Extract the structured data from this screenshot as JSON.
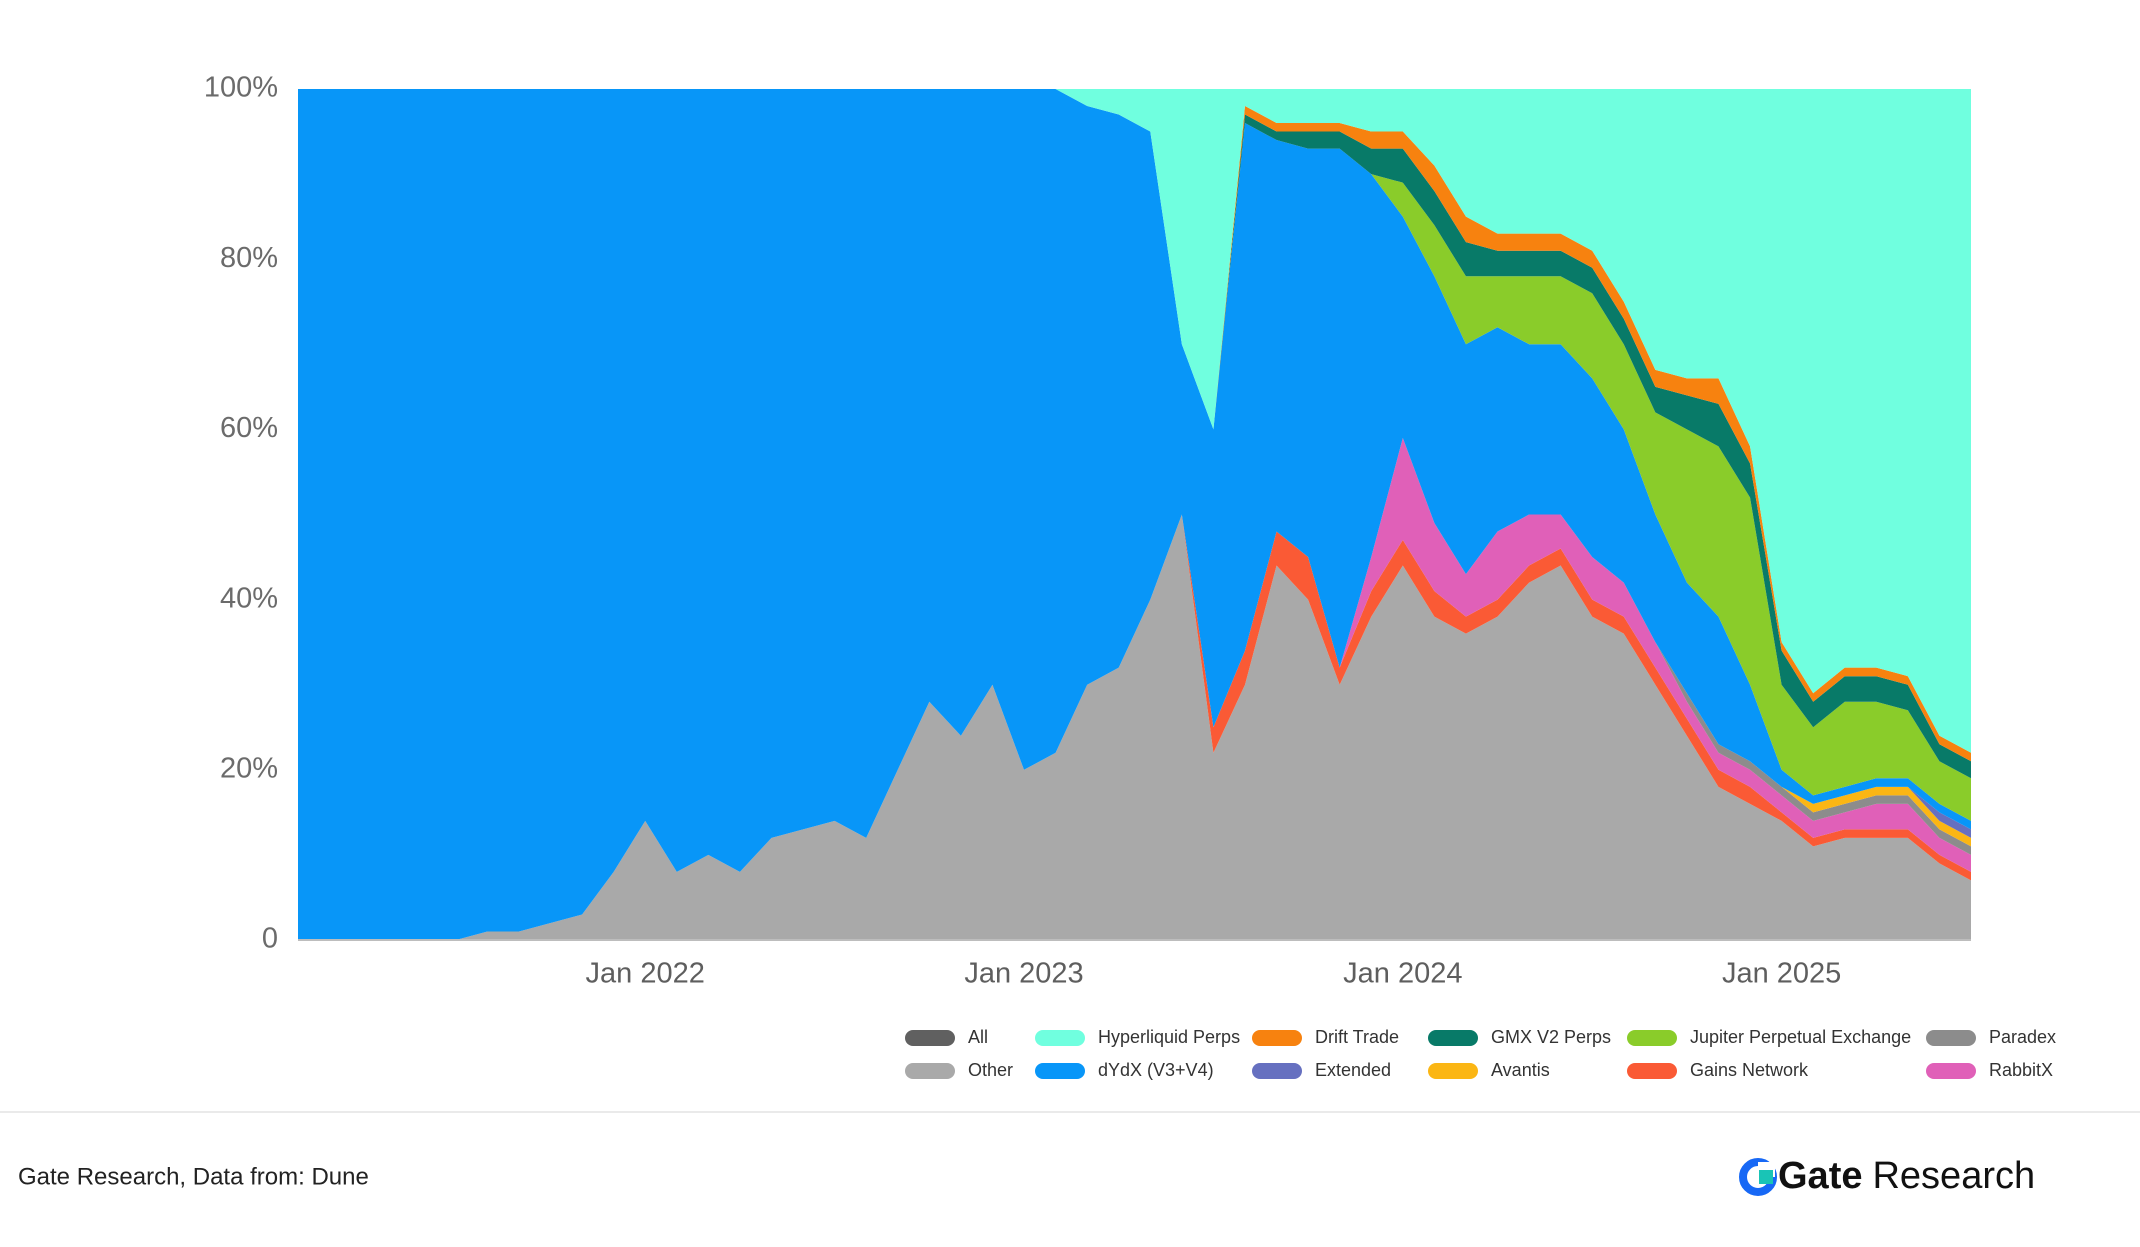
{
  "chart_data": {
    "type": "stacked_area_percent",
    "x": [
      "2021-02",
      "2021-03",
      "2021-04",
      "2021-05",
      "2021-06",
      "2021-07",
      "2021-08",
      "2021-09",
      "2021-10",
      "2021-11",
      "2021-12",
      "2022-01",
      "2022-02",
      "2022-03",
      "2022-04",
      "2022-05",
      "2022-06",
      "2022-07",
      "2022-08",
      "2022-09",
      "2022-10",
      "2022-11",
      "2022-12",
      "2023-01",
      "2023-02",
      "2023-03",
      "2023-04",
      "2023-05",
      "2023-06",
      "2023-07",
      "2023-08",
      "2023-09",
      "2023-10",
      "2023-11",
      "2023-12",
      "2024-01",
      "2024-02",
      "2024-03",
      "2024-04",
      "2024-05",
      "2024-06",
      "2024-07",
      "2024-08",
      "2024-09",
      "2024-10",
      "2024-11",
      "2024-12",
      "2025-01",
      "2025-02",
      "2025-03",
      "2025-04",
      "2025-05",
      "2025-06",
      "2025-07"
    ],
    "xlim": [
      "2021-02",
      "2025-07"
    ],
    "xticks": [
      {
        "value": "2022-01",
        "label": "Jan 2022"
      },
      {
        "value": "2023-01",
        "label": "Jan 2023"
      },
      {
        "value": "2024-01",
        "label": "Jan 2024"
      },
      {
        "value": "2025-01",
        "label": "Jan 2025"
      }
    ],
    "ylim": [
      0,
      100
    ],
    "yticks": [
      0,
      {
        "value": 20,
        "label": "20%"
      },
      {
        "value": 40,
        "label": "40%"
      },
      {
        "value": 60,
        "label": "60%"
      },
      {
        "value": 80,
        "label": "80%"
      },
      {
        "value": 100,
        "label": "100%"
      }
    ],
    "grid": false,
    "legend": "bottom-right",
    "series": [
      {
        "name": "Other",
        "color": "#a9a9a9",
        "values": [
          0,
          0,
          0,
          0,
          0,
          0,
          1,
          1,
          2,
          3,
          8,
          14,
          8,
          10,
          8,
          12,
          13,
          14,
          12,
          20,
          28,
          24,
          30,
          20,
          22,
          30,
          32,
          40,
          50,
          22,
          30,
          44,
          40,
          30,
          38,
          44,
          38,
          36,
          38,
          42,
          44,
          38,
          36,
          30,
          24,
          18,
          16,
          14,
          11,
          12,
          12,
          12,
          9,
          7
        ]
      },
      {
        "name": "Gains Network",
        "color": "#fa5a35",
        "values": [
          0,
          0,
          0,
          0,
          0,
          0,
          0,
          0,
          0,
          0,
          0,
          0,
          0,
          0,
          0,
          0,
          0,
          0,
          0,
          0,
          0,
          0,
          0,
          0,
          0,
          0,
          0,
          0,
          0,
          3,
          4,
          4,
          5,
          2,
          3,
          3,
          3,
          2,
          2,
          2,
          2,
          2,
          2,
          2,
          2,
          2,
          2,
          1,
          1,
          1,
          1,
          1,
          1,
          1
        ]
      },
      {
        "name": "RabbitX",
        "color": "#e060b8",
        "values": [
          0,
          0,
          0,
          0,
          0,
          0,
          0,
          0,
          0,
          0,
          0,
          0,
          0,
          0,
          0,
          0,
          0,
          0,
          0,
          0,
          0,
          0,
          0,
          0,
          0,
          0,
          0,
          0,
          0,
          0,
          0,
          0,
          0,
          0,
          4,
          12,
          8,
          5,
          8,
          6,
          4,
          5,
          4,
          3,
          2,
          2,
          2,
          2,
          2,
          2,
          3,
          3,
          2,
          2
        ]
      },
      {
        "name": "Paradex",
        "color": "#8c8c8c",
        "values": [
          0,
          0,
          0,
          0,
          0,
          0,
          0,
          0,
          0,
          0,
          0,
          0,
          0,
          0,
          0,
          0,
          0,
          0,
          0,
          0,
          0,
          0,
          0,
          0,
          0,
          0,
          0,
          0,
          0,
          0,
          0,
          0,
          0,
          0,
          0,
          0,
          0,
          0,
          0,
          0,
          0,
          0,
          0,
          0,
          1,
          1,
          1,
          1,
          1,
          1,
          1,
          1,
          1,
          1
        ]
      },
      {
        "name": "Avantis",
        "color": "#fbb614",
        "values": [
          0,
          0,
          0,
          0,
          0,
          0,
          0,
          0,
          0,
          0,
          0,
          0,
          0,
          0,
          0,
          0,
          0,
          0,
          0,
          0,
          0,
          0,
          0,
          0,
          0,
          0,
          0,
          0,
          0,
          0,
          0,
          0,
          0,
          0,
          0,
          0,
          0,
          0,
          0,
          0,
          0,
          0,
          0,
          0,
          0,
          0,
          0,
          0,
          1,
          1,
          1,
          1,
          1,
          1
        ]
      },
      {
        "name": "Extended",
        "color": "#6670c0",
        "values": [
          0,
          0,
          0,
          0,
          0,
          0,
          0,
          0,
          0,
          0,
          0,
          0,
          0,
          0,
          0,
          0,
          0,
          0,
          0,
          0,
          0,
          0,
          0,
          0,
          0,
          0,
          0,
          0,
          0,
          0,
          0,
          0,
          0,
          0,
          0,
          0,
          0,
          0,
          0,
          0,
          0,
          0,
          0,
          0,
          0,
          0,
          0,
          0,
          0,
          0,
          0,
          0,
          1,
          1
        ]
      },
      {
        "name": "dYdX (V3+V4)",
        "color": "#0896f8",
        "values": [
          100,
          100,
          100,
          100,
          100,
          100,
          99,
          99,
          98,
          97,
          92,
          86,
          92,
          90,
          92,
          88,
          87,
          86,
          88,
          80,
          72,
          76,
          70,
          80,
          78,
          68,
          65,
          55,
          20,
          35,
          62,
          46,
          48,
          61,
          45,
          26,
          29,
          27,
          24,
          20,
          20,
          21,
          18,
          15,
          13,
          15,
          9,
          2,
          1,
          1,
          1,
          1,
          1,
          1
        ]
      },
      {
        "name": "Jupiter Perpetual Exchange",
        "color": "#8acc2a",
        "values": [
          0,
          0,
          0,
          0,
          0,
          0,
          0,
          0,
          0,
          0,
          0,
          0,
          0,
          0,
          0,
          0,
          0,
          0,
          0,
          0,
          0,
          0,
          0,
          0,
          0,
          0,
          0,
          0,
          0,
          0,
          0,
          0,
          0,
          0,
          0,
          4,
          6,
          8,
          6,
          8,
          8,
          10,
          10,
          12,
          18,
          20,
          22,
          10,
          8,
          10,
          9,
          8,
          5,
          5
        ]
      },
      {
        "name": "GMX V2 Perps",
        "color": "#087a68",
        "values": [
          0,
          0,
          0,
          0,
          0,
          0,
          0,
          0,
          0,
          0,
          0,
          0,
          0,
          0,
          0,
          0,
          0,
          0,
          0,
          0,
          0,
          0,
          0,
          0,
          0,
          0,
          0,
          0,
          0,
          0,
          1,
          1,
          2,
          2,
          3,
          4,
          4,
          4,
          3,
          3,
          3,
          3,
          3,
          3,
          4,
          5,
          4,
          4,
          3,
          3,
          3,
          3,
          2,
          2
        ]
      },
      {
        "name": "Drift Trade",
        "color": "#f7820f",
        "values": [
          0,
          0,
          0,
          0,
          0,
          0,
          0,
          0,
          0,
          0,
          0,
          0,
          0,
          0,
          0,
          0,
          0,
          0,
          0,
          0,
          0,
          0,
          0,
          0,
          0,
          0,
          0,
          0,
          0,
          0,
          1,
          1,
          1,
          1,
          2,
          2,
          3,
          3,
          2,
          2,
          2,
          2,
          2,
          2,
          2,
          3,
          2,
          1,
          1,
          1,
          1,
          1,
          1,
          1
        ]
      },
      {
        "name": "Hyperliquid Perps",
        "color": "#70ffdf",
        "values": [
          0,
          0,
          0,
          0,
          0,
          0,
          0,
          0,
          0,
          0,
          0,
          0,
          0,
          0,
          0,
          0,
          0,
          0,
          0,
          0,
          0,
          0,
          0,
          0,
          0,
          2,
          3,
          5,
          30,
          40,
          2,
          4,
          4,
          4,
          5,
          5,
          9,
          15,
          17,
          17,
          17,
          19,
          25,
          33,
          34,
          34,
          42,
          65,
          71,
          68,
          68,
          69,
          76,
          78
        ]
      },
      {
        "name": "All",
        "color": "#606060",
        "values": [
          0,
          0,
          0,
          0,
          0,
          0,
          0,
          0,
          0,
          0,
          0,
          0,
          0,
          0,
          0,
          0,
          0,
          0,
          0,
          0,
          0,
          0,
          0,
          0,
          0,
          0,
          0,
          0,
          0,
          0,
          0,
          0,
          0,
          0,
          0,
          0,
          0,
          0,
          0,
          0,
          0,
          0,
          0,
          0,
          0,
          0,
          0,
          0,
          0,
          0,
          0,
          0,
          0,
          0
        ]
      }
    ]
  },
  "footer": {
    "source": "Gate Research, Data from: Dune",
    "logo_brand": "Gate",
    "logo_suffix": "Research"
  }
}
